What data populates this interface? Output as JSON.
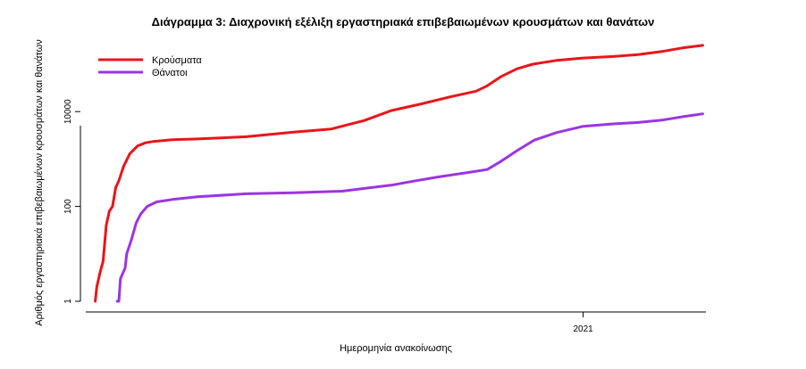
{
  "chart_data": {
    "type": "line",
    "title": "Διάγραμμα 3: Διαχρονική εξέλιξη εργαστηριακά επιβεβαιωμένων κρουσμάτων και θανάτων",
    "xlabel": "Ημερομηνία ανακοίνωσης",
    "ylabel": "Αριθμός εργαστηριακά επιβεβαιωμένων κρουσμάτων και θανάτων",
    "y_scale": "log",
    "ylim": [
      1,
      400000
    ],
    "yticks": [
      1,
      100,
      10000
    ],
    "ytick_labels": [
      "1",
      "100",
      "10000"
    ],
    "xlim": [
      "2020-02-20",
      "2021-03-20"
    ],
    "xticks": [
      "2021-01-01"
    ],
    "xtick_labels": [
      "2021"
    ],
    "legend_position": "top-left",
    "series": [
      {
        "name": "Κρούσματα",
        "color": "#e8161b",
        "points": [
          [
            "2020-02-26",
            1
          ],
          [
            "2020-02-27",
            2
          ],
          [
            "2020-02-29",
            4
          ],
          [
            "2020-03-02",
            7
          ],
          [
            "2020-03-04",
            40
          ],
          [
            "2020-03-06",
            80
          ],
          [
            "2020-03-08",
            100
          ],
          [
            "2020-03-10",
            250
          ],
          [
            "2020-03-12",
            350
          ],
          [
            "2020-03-15",
            700
          ],
          [
            "2020-03-19",
            1300
          ],
          [
            "2020-03-24",
            1900
          ],
          [
            "2020-03-29",
            2200
          ],
          [
            "2020-04-03",
            2350
          ],
          [
            "2020-04-15",
            2550
          ],
          [
            "2020-05-01",
            2650
          ],
          [
            "2020-06-01",
            2950
          ],
          [
            "2020-07-01",
            3700
          ],
          [
            "2020-07-25",
            4300
          ],
          [
            "2020-08-15",
            6500
          ],
          [
            "2020-09-01",
            10500
          ],
          [
            "2020-09-20",
            14500
          ],
          [
            "2020-10-10",
            21000
          ],
          [
            "2020-10-25",
            27000
          ],
          [
            "2020-11-01",
            35000
          ],
          [
            "2020-11-10",
            55000
          ],
          [
            "2020-11-20",
            80000
          ],
          [
            "2020-11-30",
            100000
          ],
          [
            "2020-12-15",
            120000
          ],
          [
            "2021-01-01",
            135000
          ],
          [
            "2021-01-20",
            145000
          ],
          [
            "2021-02-05",
            160000
          ],
          [
            "2021-02-20",
            185000
          ],
          [
            "2021-03-05",
            220000
          ],
          [
            "2021-03-18",
            250000
          ]
        ]
      },
      {
        "name": "Θάνατοι",
        "color": "#9b35e3",
        "points": [
          [
            "2020-03-11",
            1
          ],
          [
            "2020-03-12",
            1
          ],
          [
            "2020-03-13",
            3
          ],
          [
            "2020-03-16",
            5
          ],
          [
            "2020-03-17",
            10
          ],
          [
            "2020-03-20",
            20
          ],
          [
            "2020-03-23",
            45
          ],
          [
            "2020-03-26",
            70
          ],
          [
            "2020-03-30",
            100
          ],
          [
            "2020-04-05",
            125
          ],
          [
            "2020-04-15",
            140
          ],
          [
            "2020-05-01",
            160
          ],
          [
            "2020-06-01",
            185
          ],
          [
            "2020-07-01",
            195
          ],
          [
            "2020-08-01",
            210
          ],
          [
            "2020-08-15",
            240
          ],
          [
            "2020-09-01",
            280
          ],
          [
            "2020-09-15",
            340
          ],
          [
            "2020-10-01",
            420
          ],
          [
            "2020-10-20",
            520
          ],
          [
            "2020-11-01",
            600
          ],
          [
            "2020-11-10",
            900
          ],
          [
            "2020-11-20",
            1500
          ],
          [
            "2020-12-01",
            2500
          ],
          [
            "2020-12-15",
            3600
          ],
          [
            "2021-01-01",
            4900
          ],
          [
            "2021-01-20",
            5500
          ],
          [
            "2021-02-05",
            5900
          ],
          [
            "2021-02-20",
            6600
          ],
          [
            "2021-03-05",
            7800
          ],
          [
            "2021-03-18",
            9000
          ]
        ]
      }
    ]
  }
}
